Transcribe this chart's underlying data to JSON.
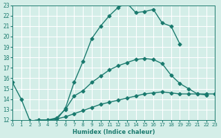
{
  "xlabel": "Humidex (Indice chaleur)",
  "xlim": [
    0,
    23
  ],
  "ylim": [
    12,
    23
  ],
  "bg_color": "#d4eee8",
  "grid_color": "#ffffff",
  "line_color": "#1a7a6e",
  "line1_x": [
    0,
    1,
    2,
    3,
    4,
    5,
    6,
    7,
    8,
    9,
    10,
    11,
    12,
    13,
    14,
    15,
    16,
    17,
    18,
    19
  ],
  "line1_y": [
    15.6,
    14.0,
    11.9,
    12.0,
    12.0,
    12.0,
    13.1,
    15.6,
    17.6,
    19.8,
    21.0,
    22.0,
    22.8,
    23.2,
    22.3,
    22.4,
    22.6,
    21.3,
    21.0,
    19.3
  ],
  "line2_x": [
    2,
    3,
    4,
    5,
    6,
    7,
    8,
    9,
    10,
    11,
    12,
    13,
    14,
    15,
    16,
    17,
    18,
    19,
    20,
    21,
    22
  ],
  "line2_y": [
    11.9,
    12.0,
    12.0,
    12.2,
    13.0,
    14.3,
    14.8,
    15.6,
    16.2,
    16.8,
    17.2,
    17.5,
    17.8,
    17.9,
    17.8,
    17.4,
    16.3,
    15.5,
    15.0,
    14.5,
    14.4
  ],
  "line3_x": [
    2,
    3,
    4,
    5,
    6,
    7,
    8,
    9,
    10,
    11,
    12,
    13,
    14,
    15,
    16,
    17,
    18,
    19,
    20,
    21,
    22,
    23
  ],
  "line3_y": [
    11.9,
    12.0,
    12.0,
    12.1,
    12.3,
    12.6,
    12.9,
    13.2,
    13.5,
    13.7,
    13.9,
    14.1,
    14.3,
    14.5,
    14.6,
    14.7,
    14.6,
    14.5,
    14.5,
    14.5,
    14.5,
    14.5
  ],
  "yticks": [
    12,
    13,
    14,
    15,
    16,
    17,
    18,
    19,
    20,
    21,
    22,
    23
  ],
  "xticks": [
    0,
    1,
    2,
    3,
    4,
    5,
    6,
    7,
    8,
    9,
    10,
    11,
    12,
    13,
    14,
    15,
    16,
    17,
    18,
    19,
    20,
    21,
    22,
    23
  ]
}
